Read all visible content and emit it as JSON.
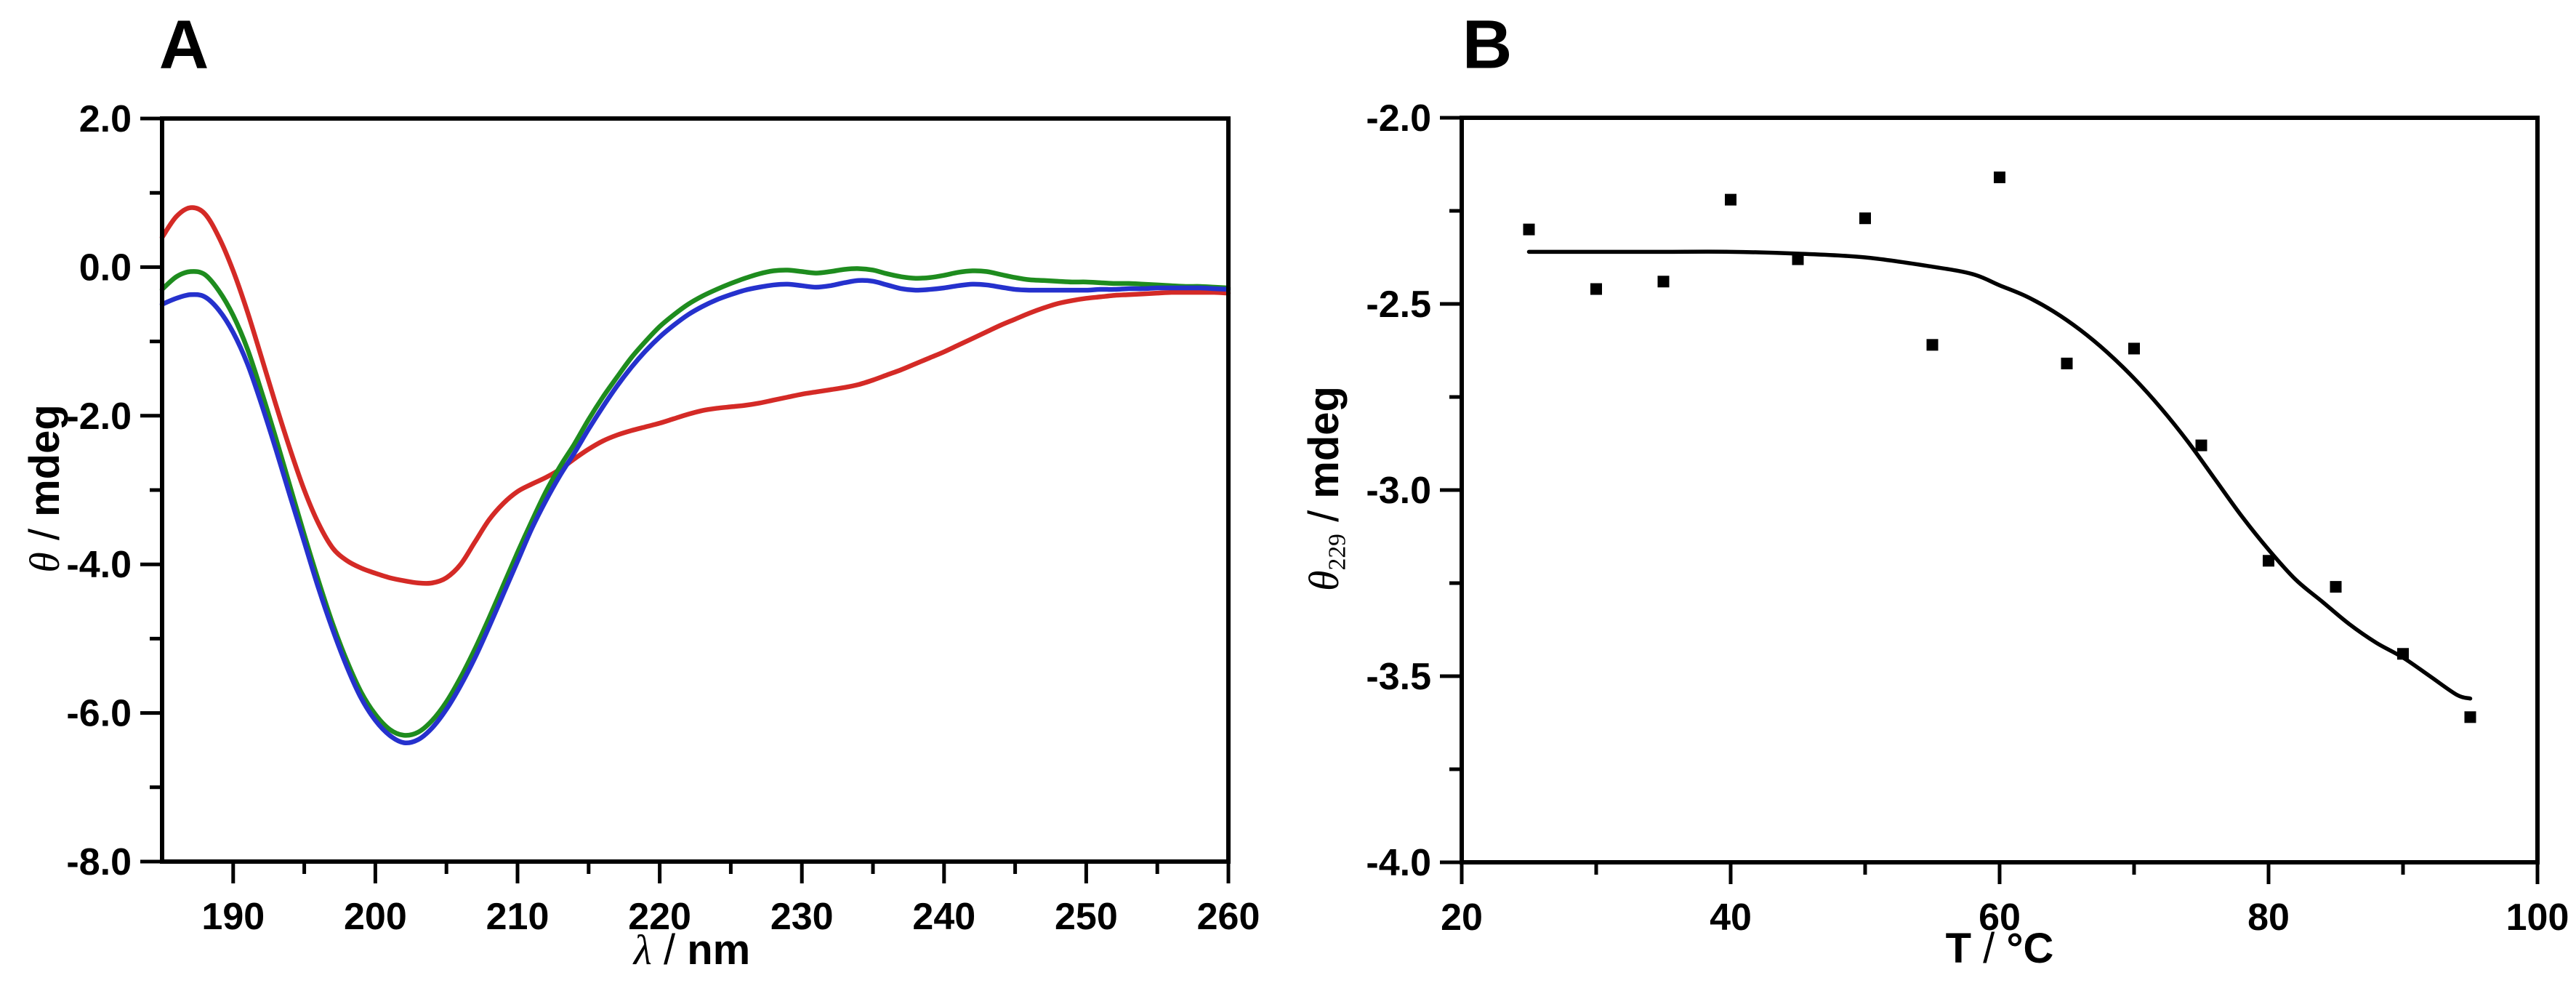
{
  "figure": {
    "background": "#ffffff",
    "frame_color": "#000000",
    "description": "Two-panel circular dichroism figure"
  },
  "chart_data": [
    {
      "id": "panel-a",
      "panel_label": "A",
      "type": "line",
      "xlabel": {
        "symbol": "λ",
        "separator": " / ",
        "unit": "nm",
        "text": "λ / nm"
      },
      "ylabel": {
        "symbol": "θ",
        "separator": " / ",
        "unit": "mdeg",
        "text": "θ / mdeg"
      },
      "xlim": [
        185,
        260
      ],
      "ylim": [
        -8,
        2
      ],
      "grid": false,
      "x_major_ticks": [
        {
          "v": 190,
          "label": "190"
        },
        {
          "v": 200,
          "label": "200"
        },
        {
          "v": 210,
          "label": "210"
        },
        {
          "v": 220,
          "label": "220"
        },
        {
          "v": 230,
          "label": "230"
        },
        {
          "v": 240,
          "label": "240"
        },
        {
          "v": 250,
          "label": "250"
        },
        {
          "v": 260,
          "label": "260"
        }
      ],
      "x_minor_ticks": [
        195,
        205,
        215,
        225,
        235,
        245,
        255
      ],
      "y_major_ticks": [
        {
          "v": 2,
          "label": "2.0"
        },
        {
          "v": 0,
          "label": "0.0"
        },
        {
          "v": -2,
          "label": "-2.0"
        },
        {
          "v": -4,
          "label": "-4.0"
        },
        {
          "v": -6,
          "label": "-6.0"
        },
        {
          "v": -8,
          "label": "-8.0"
        }
      ],
      "y_minor_ticks": [
        1,
        -1,
        -3,
        -5,
        -7
      ],
      "x_start": 185,
      "x_step": 1,
      "series": [
        {
          "name": "red-spectrum",
          "color": "#d42a26",
          "values": [
            0.4,
            0.68,
            0.8,
            0.72,
            0.4,
            -0.05,
            -0.6,
            -1.22,
            -1.85,
            -2.45,
            -3.0,
            -3.45,
            -3.78,
            -3.95,
            -4.05,
            -4.12,
            -4.18,
            -4.22,
            -4.25,
            -4.25,
            -4.18,
            -4.0,
            -3.7,
            -3.4,
            -3.18,
            -3.02,
            -2.92,
            -2.83,
            -2.72,
            -2.58,
            -2.45,
            -2.34,
            -2.26,
            -2.2,
            -2.15,
            -2.1,
            -2.04,
            -1.98,
            -1.93,
            -1.9,
            -1.88,
            -1.86,
            -1.83,
            -1.79,
            -1.75,
            -1.71,
            -1.68,
            -1.65,
            -1.62,
            -1.58,
            -1.52,
            -1.45,
            -1.38,
            -1.3,
            -1.22,
            -1.14,
            -1.05,
            -0.96,
            -0.87,
            -0.78,
            -0.7,
            -0.62,
            -0.55,
            -0.49,
            -0.45,
            -0.42,
            -0.4,
            -0.38,
            -0.37,
            -0.36,
            -0.35,
            -0.34,
            -0.34,
            -0.34,
            -0.34,
            -0.35
          ]
        },
        {
          "name": "green-spectrum",
          "color": "#1e8c1e",
          "values": [
            -0.3,
            -0.13,
            -0.06,
            -0.1,
            -0.32,
            -0.65,
            -1.1,
            -1.68,
            -2.3,
            -2.95,
            -3.6,
            -4.22,
            -4.8,
            -5.3,
            -5.72,
            -6.02,
            -6.22,
            -6.3,
            -6.26,
            -6.1,
            -5.85,
            -5.52,
            -5.14,
            -4.72,
            -4.28,
            -3.84,
            -3.42,
            -3.02,
            -2.68,
            -2.38,
            -2.05,
            -1.75,
            -1.48,
            -1.22,
            -1.0,
            -0.8,
            -0.64,
            -0.5,
            -0.39,
            -0.3,
            -0.22,
            -0.15,
            -0.09,
            -0.05,
            -0.04,
            -0.06,
            -0.08,
            -0.06,
            -0.03,
            -0.02,
            -0.04,
            -0.09,
            -0.13,
            -0.15,
            -0.14,
            -0.11,
            -0.07,
            -0.05,
            -0.06,
            -0.1,
            -0.14,
            -0.17,
            -0.18,
            -0.19,
            -0.2,
            -0.2,
            -0.21,
            -0.22,
            -0.22,
            -0.23,
            -0.24,
            -0.25,
            -0.26,
            -0.26,
            -0.27,
            -0.28
          ]
        },
        {
          "name": "blue-spectrum",
          "color": "#2531cd",
          "values": [
            -0.5,
            -0.42,
            -0.37,
            -0.4,
            -0.58,
            -0.88,
            -1.3,
            -1.85,
            -2.45,
            -3.08,
            -3.7,
            -4.32,
            -4.88,
            -5.38,
            -5.8,
            -6.1,
            -6.3,
            -6.4,
            -6.36,
            -6.2,
            -5.95,
            -5.63,
            -5.26,
            -4.84,
            -4.4,
            -3.96,
            -3.52,
            -3.14,
            -2.8,
            -2.5,
            -2.18,
            -1.88,
            -1.6,
            -1.35,
            -1.13,
            -0.94,
            -0.78,
            -0.64,
            -0.53,
            -0.44,
            -0.37,
            -0.31,
            -0.27,
            -0.24,
            -0.23,
            -0.25,
            -0.27,
            -0.25,
            -0.21,
            -0.18,
            -0.19,
            -0.24,
            -0.29,
            -0.31,
            -0.3,
            -0.28,
            -0.25,
            -0.23,
            -0.24,
            -0.27,
            -0.3,
            -0.31,
            -0.31,
            -0.31,
            -0.31,
            -0.31,
            -0.3,
            -0.3,
            -0.29,
            -0.29,
            -0.28,
            -0.28,
            -0.28,
            -0.28,
            -0.29,
            -0.3
          ]
        }
      ]
    },
    {
      "id": "panel-b",
      "panel_label": "B",
      "type": "scatter",
      "xlabel": {
        "symbol": "T",
        "separator": " / ",
        "unit": "°C",
        "text": "T / °C"
      },
      "ylabel": {
        "symbol": "θ",
        "subscript": "229",
        "separator": " / ",
        "unit": "mdeg",
        "text": "θ229 / mdeg"
      },
      "xlim": [
        20,
        100
      ],
      "ylim": [
        -4,
        -2
      ],
      "grid": false,
      "x_major_ticks": [
        {
          "v": 20,
          "label": "20"
        },
        {
          "v": 40,
          "label": "40"
        },
        {
          "v": 60,
          "label": "60"
        },
        {
          "v": 80,
          "label": "80"
        },
        {
          "v": 100,
          "label": "100"
        }
      ],
      "x_minor_ticks": [
        30,
        50,
        70,
        90
      ],
      "y_major_ticks": [
        {
          "v": -2.0,
          "label": "-2.0"
        },
        {
          "v": -2.5,
          "label": "-2.5"
        },
        {
          "v": -3.0,
          "label": "-3.0"
        },
        {
          "v": -3.5,
          "label": "-3.5"
        },
        {
          "v": -4.0,
          "label": "-4.0"
        }
      ],
      "y_minor_ticks": [
        -2.25,
        -2.75,
        -3.25,
        -3.75
      ],
      "points": {
        "name": "melting-data-points",
        "color": "#000000",
        "marker": "square",
        "values": [
          [
            25,
            -2.3
          ],
          [
            30,
            -2.46
          ],
          [
            35,
            -2.44
          ],
          [
            40,
            -2.22
          ],
          [
            45,
            -2.38
          ],
          [
            50,
            -2.27
          ],
          [
            55,
            -2.61
          ],
          [
            60,
            -2.16
          ],
          [
            65,
            -2.66
          ],
          [
            70,
            -2.62
          ],
          [
            75,
            -2.88
          ],
          [
            80,
            -3.19
          ],
          [
            85,
            -3.26
          ],
          [
            90,
            -3.44
          ],
          [
            95,
            -3.61
          ]
        ]
      },
      "fit_line": {
        "name": "melting-fit-curve",
        "color": "#000000",
        "values": [
          [
            25,
            -2.36
          ],
          [
            30,
            -2.36
          ],
          [
            35,
            -2.36
          ],
          [
            40,
            -2.36
          ],
          [
            45,
            -2.365
          ],
          [
            50,
            -2.375
          ],
          [
            55,
            -2.4
          ],
          [
            58,
            -2.42
          ],
          [
            60,
            -2.45
          ],
          [
            62,
            -2.48
          ],
          [
            64,
            -2.52
          ],
          [
            66,
            -2.57
          ],
          [
            68,
            -2.63
          ],
          [
            70,
            -2.7
          ],
          [
            72,
            -2.78
          ],
          [
            74,
            -2.87
          ],
          [
            76,
            -2.97
          ],
          [
            78,
            -3.07
          ],
          [
            80,
            -3.16
          ],
          [
            82,
            -3.24
          ],
          [
            84,
            -3.3
          ],
          [
            86,
            -3.36
          ],
          [
            88,
            -3.41
          ],
          [
            90,
            -3.45
          ],
          [
            92,
            -3.5
          ],
          [
            94,
            -3.55
          ],
          [
            95,
            -3.56
          ]
        ]
      }
    }
  ]
}
